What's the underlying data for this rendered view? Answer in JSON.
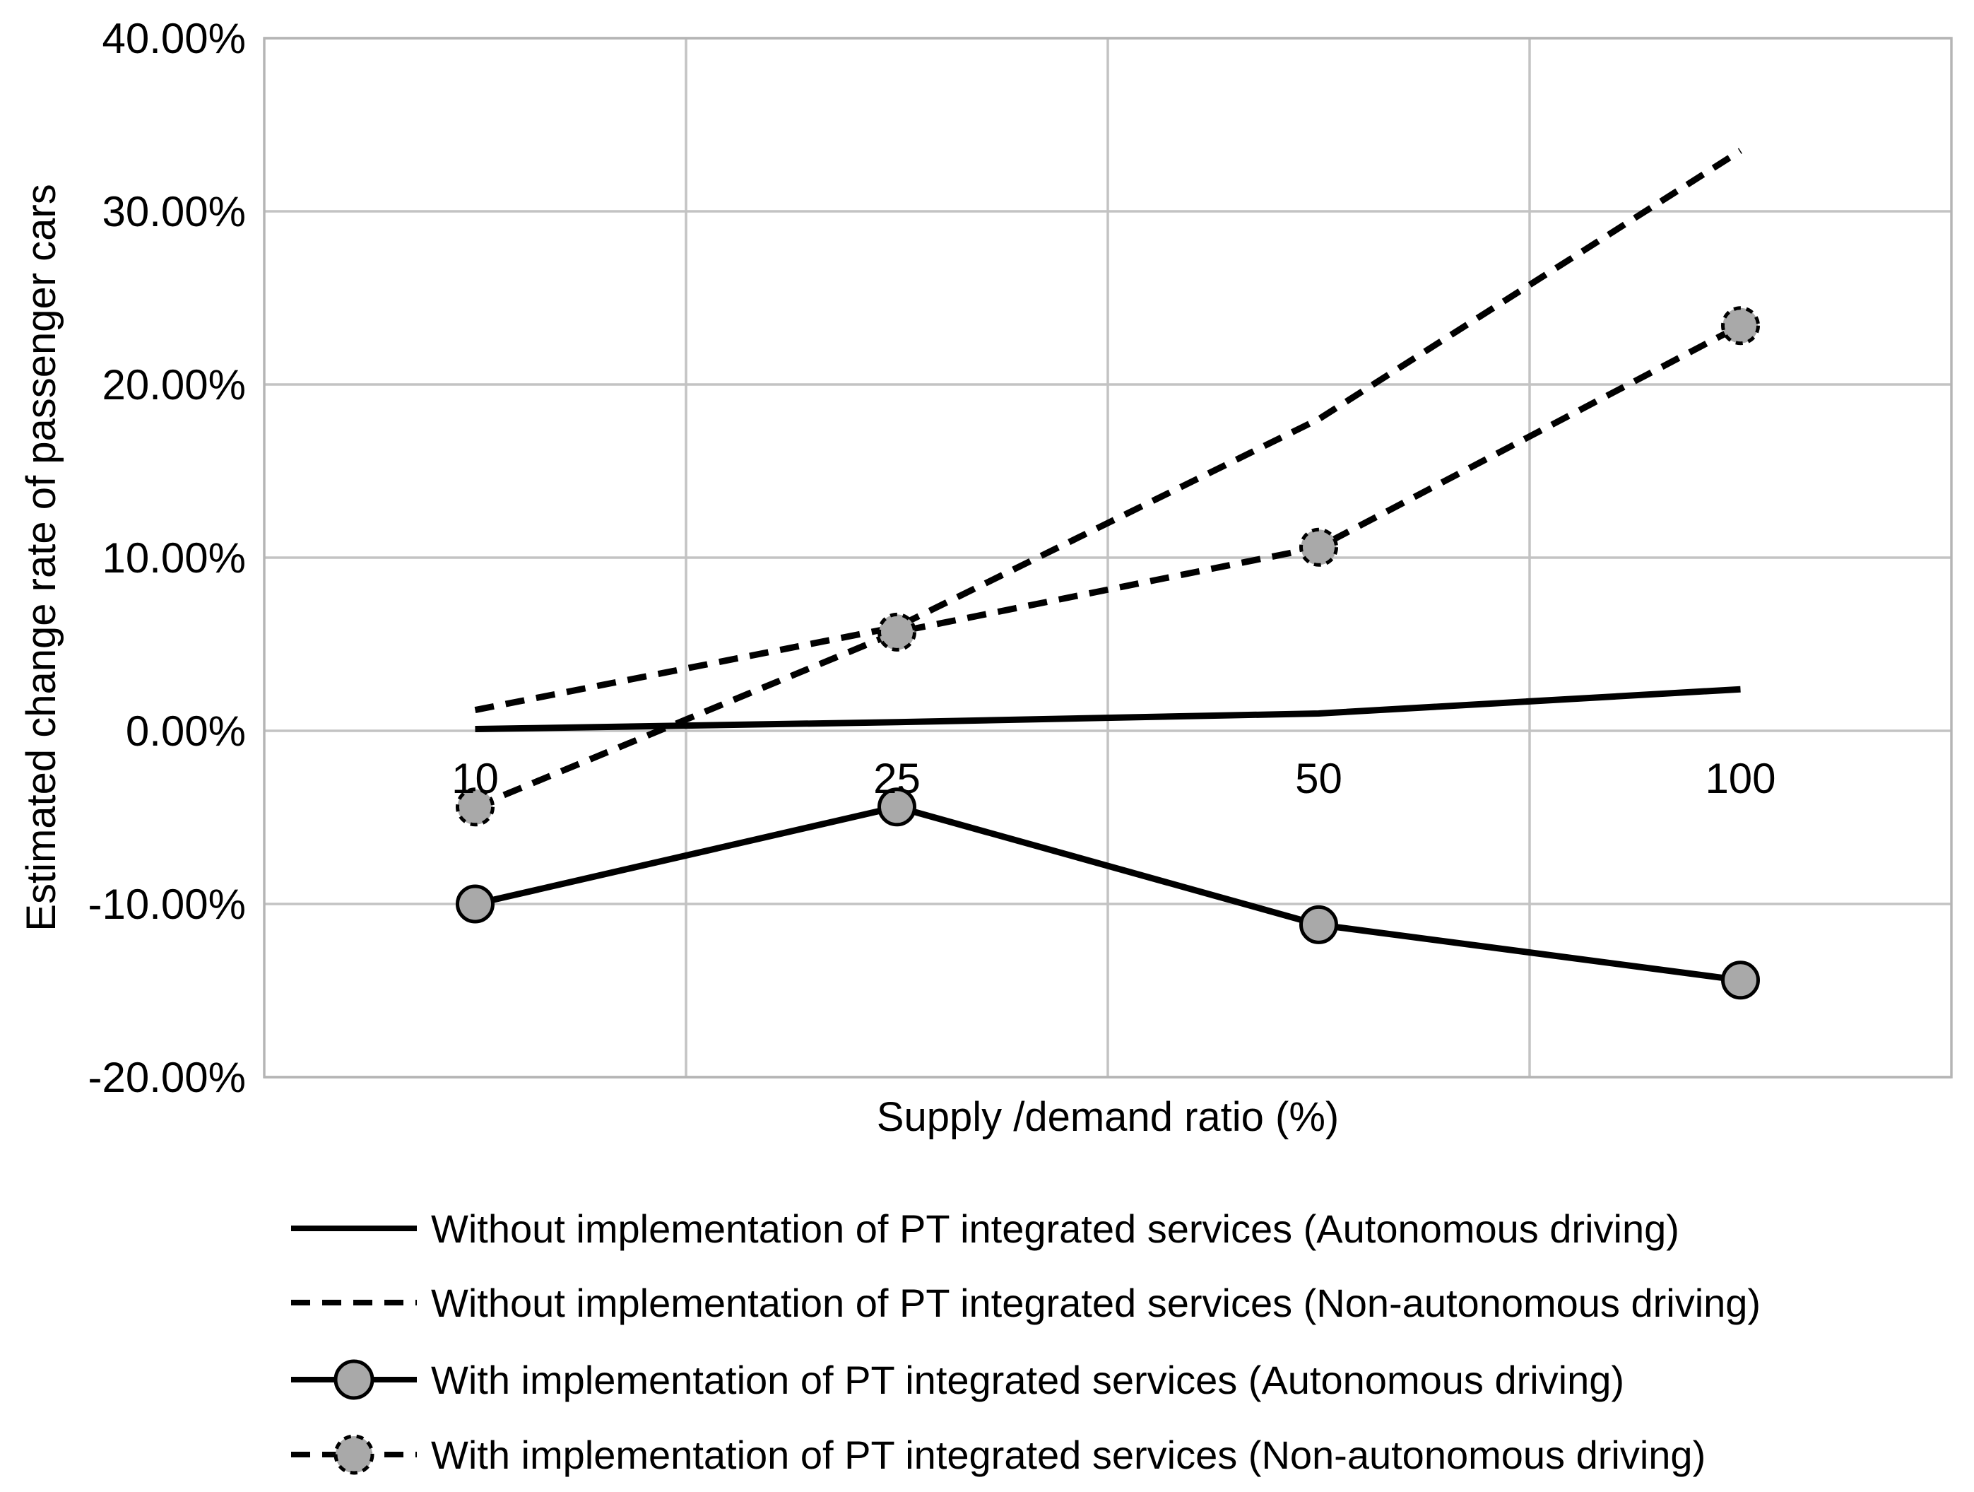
{
  "chart_data": {
    "type": "line",
    "title": "",
    "xlabel": "Supply /demand ratio (%)",
    "ylabel": "Estimated change rate of passenger cars",
    "categories": [
      "10",
      "25",
      "50",
      "100"
    ],
    "ylim": [
      -20,
      40
    ],
    "y_tick_interval": 10,
    "y_ticks": [
      {
        "value": 40,
        "label": "40.00%"
      },
      {
        "value": 30,
        "label": "30.00%"
      },
      {
        "value": 20,
        "label": "20.00%"
      },
      {
        "value": 10,
        "label": "10.00%"
      },
      {
        "value": 0,
        "label": "0.00%"
      },
      {
        "value": -10,
        "label": "-10.00%"
      },
      {
        "value": -20,
        "label": "-20.00%"
      }
    ],
    "grid": {
      "horizontal": true,
      "vertical": true
    },
    "legend_position": "bottom-left",
    "series": [
      {
        "name": "Without implementation of PT integrated services (Autonomous driving)",
        "line_style": "solid",
        "markers": false,
        "values": [
          0.1,
          0.5,
          1.0,
          2.4
        ]
      },
      {
        "name": "Without implementation of PT integrated services (Non-autonomous driving)",
        "line_style": "dashed",
        "markers": false,
        "values": [
          1.2,
          6.0,
          18.0,
          33.5
        ]
      },
      {
        "name": "With implementation of PT integrated services (Autonomous driving)",
        "line_style": "solid",
        "markers": true,
        "values": [
          -10.0,
          -4.4,
          -11.2,
          -14.4
        ]
      },
      {
        "name": "With implementation of PT integrated services (Non-autonomous driving)",
        "line_style": "dashed",
        "markers": true,
        "values": [
          -4.4,
          5.7,
          10.6,
          23.4
        ]
      }
    ],
    "colors": {
      "line": "#000000",
      "marker_fill": "#a9a9a9",
      "gridline": "#c3c3c3",
      "plot_border": "#b5b5b5",
      "text": "#000000",
      "background": "#ffffff"
    }
  }
}
